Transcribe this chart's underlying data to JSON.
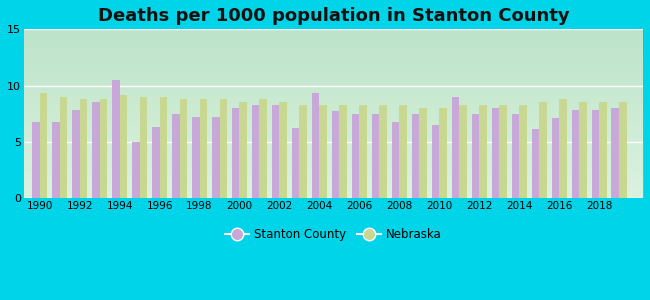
{
  "title": "Deaths per 1000 population in Stanton County",
  "years": [
    1990,
    1991,
    1992,
    1993,
    1994,
    1995,
    1996,
    1997,
    1998,
    1999,
    2000,
    2001,
    2002,
    2003,
    2004,
    2005,
    2006,
    2007,
    2008,
    2009,
    2010,
    2011,
    2012,
    2013,
    2014,
    2015,
    2016,
    2017,
    2018,
    2019
  ],
  "stanton": [
    6.8,
    6.8,
    7.8,
    8.5,
    10.5,
    5.0,
    6.3,
    7.5,
    7.2,
    7.2,
    8.0,
    8.3,
    8.3,
    6.2,
    9.3,
    7.7,
    7.5,
    7.5,
    6.8,
    7.5,
    6.5,
    9.0,
    7.5,
    8.0,
    7.5,
    6.1,
    7.1,
    7.8,
    7.8,
    8.0
  ],
  "nebraska": [
    9.3,
    9.0,
    8.8,
    8.8,
    9.2,
    9.0,
    9.0,
    8.8,
    8.8,
    8.8,
    8.5,
    8.8,
    8.5,
    8.3,
    8.3,
    8.3,
    8.3,
    8.3,
    8.3,
    8.0,
    8.0,
    8.3,
    8.3,
    8.3,
    8.3,
    8.5,
    8.8,
    8.5,
    8.5,
    8.5
  ],
  "stanton_color": "#c8a8d8",
  "nebraska_color": "#c8d890",
  "background_outer": "#00d4e8",
  "background_plot_top": "#eaf8f2",
  "background_plot_bottom": "#c8ecd8",
  "ylim": [
    0,
    15
  ],
  "yticks": [
    0,
    5,
    10,
    15
  ],
  "title_fontsize": 13,
  "bar_width": 0.38,
  "xticks": [
    1990,
    1992,
    1994,
    1996,
    1998,
    2000,
    2002,
    2004,
    2006,
    2008,
    2010,
    2012,
    2014,
    2016,
    2018
  ]
}
